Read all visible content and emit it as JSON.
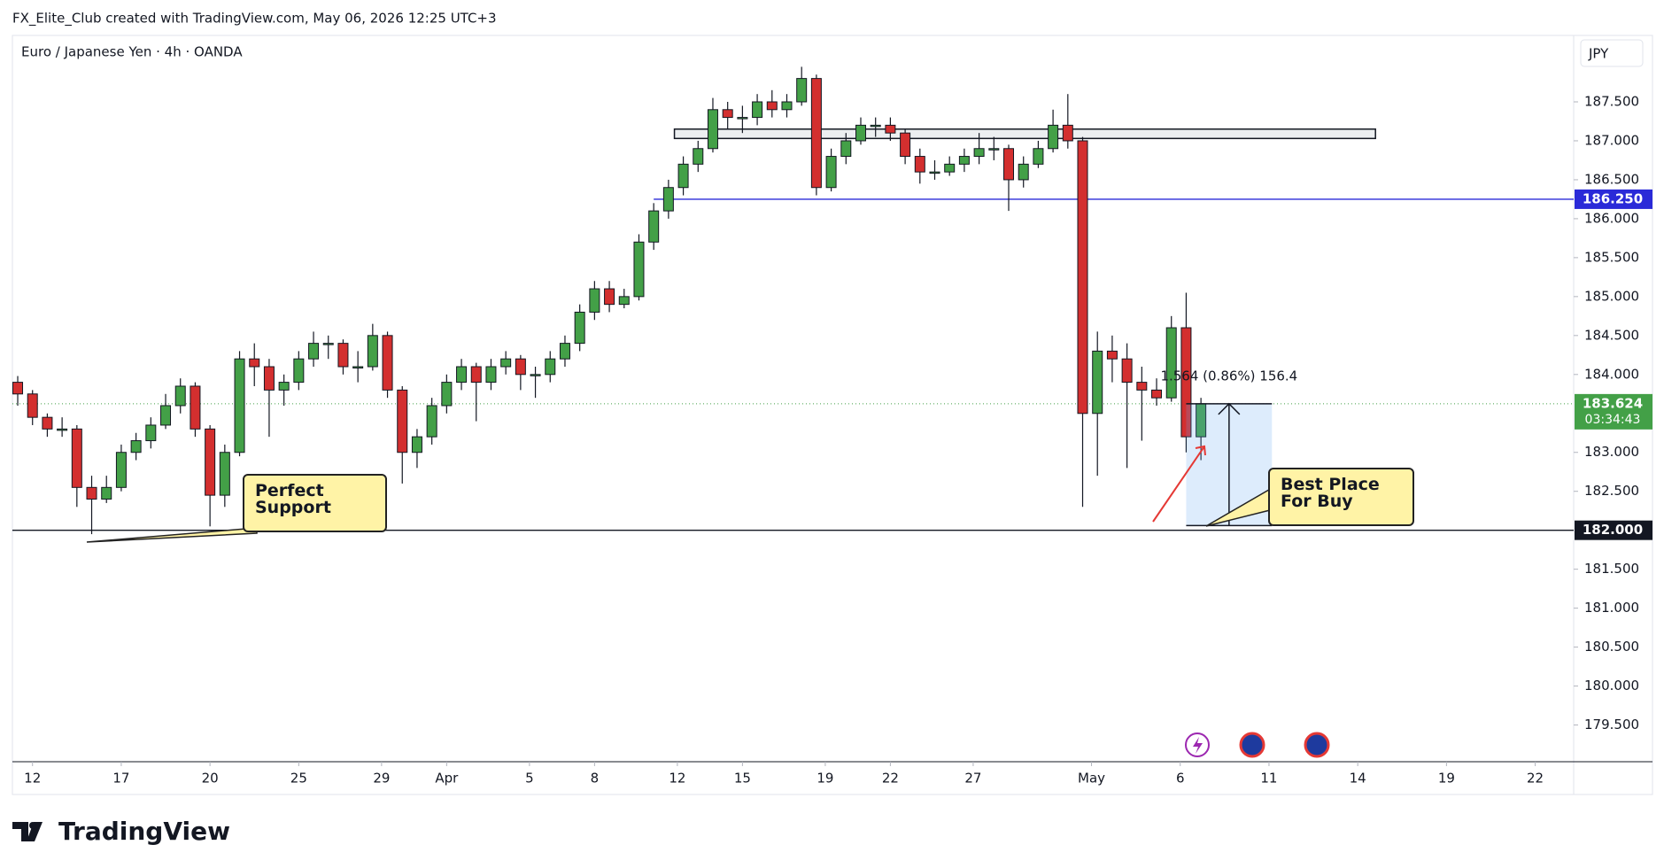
{
  "header": "FX_Elite_Club created with TradingView.com, May 06, 2026 12:25 UTC+3",
  "branding": "TradingView",
  "chart_data": {
    "type": "candlestick",
    "title": "Euro / Japanese Yen · 4h · OANDA",
    "currency": "JPY",
    "up_color": "#43a047",
    "down_color": "#d32f2f",
    "grid": false,
    "xlim": [
      -0.68,
      52.1
    ],
    "ylim": [
      179.04,
      188.33
    ],
    "xticks": [
      {
        "value": 0,
        "label": "12"
      },
      {
        "value": 3,
        "label": "17"
      },
      {
        "value": 6,
        "label": "20"
      },
      {
        "value": 9,
        "label": "25"
      },
      {
        "value": 11.8,
        "label": "29"
      },
      {
        "value": 14,
        "label": "Apr"
      },
      {
        "value": 16.8,
        "label": "5"
      },
      {
        "value": 19,
        "label": "8"
      },
      {
        "value": 21.8,
        "label": "12"
      },
      {
        "value": 24,
        "label": "15"
      },
      {
        "value": 26.8,
        "label": "19"
      },
      {
        "value": 29,
        "label": "22"
      },
      {
        "value": 31.8,
        "label": "27"
      },
      {
        "value": 35.8,
        "label": "May"
      },
      {
        "value": 38.8,
        "label": "6"
      },
      {
        "value": 41.8,
        "label": "11"
      },
      {
        "value": 44.8,
        "label": "14"
      },
      {
        "value": 47.8,
        "label": "19"
      },
      {
        "value": 50.8,
        "label": "22"
      }
    ],
    "yticks": [
      {
        "value": 187.5,
        "label": "187.500"
      },
      {
        "value": 187,
        "label": "187.000"
      },
      {
        "value": 186.5,
        "label": "186.500"
      },
      {
        "value": 186,
        "label": "186.000"
      },
      {
        "value": 185.5,
        "label": "185.500"
      },
      {
        "value": 185,
        "label": "185.000"
      },
      {
        "value": 184.5,
        "label": "184.500"
      },
      {
        "value": 184,
        "label": "184.000"
      },
      {
        "value": 183,
        "label": "183.000"
      },
      {
        "value": 182.5,
        "label": "182.500"
      },
      {
        "value": 181.5,
        "label": "181.500"
      },
      {
        "value": 181,
        "label": "181.000"
      },
      {
        "value": 180.5,
        "label": "180.500"
      },
      {
        "value": 180,
        "label": "180.000"
      },
      {
        "value": 179.5,
        "label": "179.500"
      }
    ],
    "x": [
      -0.5,
      0,
      0.5,
      1,
      1.5,
      2,
      2.5,
      3,
      3.5,
      4,
      4.5,
      5,
      5.5,
      6,
      6.5,
      7,
      7.5,
      8,
      8.5,
      9,
      9.5,
      10,
      10.5,
      11,
      11.5,
      12,
      12.5,
      13,
      13.5,
      14,
      14.5,
      15,
      15.5,
      16,
      16.5,
      17,
      17.5,
      18,
      18.5,
      19,
      19.5,
      20,
      20.5,
      21,
      21.5,
      22,
      22.5,
      23,
      23.5,
      24,
      24.5,
      25,
      25.5,
      26,
      26.5,
      27,
      27.5,
      28,
      28.5,
      29,
      29.5,
      30,
      30.5,
      31,
      31.5,
      32,
      32.5,
      33,
      33.5,
      34,
      34.5,
      35,
      35.5,
      36,
      36.5,
      37,
      37.5,
      38,
      38.5,
      39,
      39.5
    ],
    "ohlc": [
      [
        183.9,
        183.98,
        183.6,
        183.75
      ],
      [
        183.75,
        183.8,
        183.35,
        183.45
      ],
      [
        183.45,
        183.5,
        183.2,
        183.3
      ],
      [
        183.3,
        183.45,
        183.2,
        183.3
      ],
      [
        183.3,
        183.35,
        182.3,
        182.55
      ],
      [
        182.55,
        182.7,
        181.95,
        182.4
      ],
      [
        182.4,
        182.7,
        182.35,
        182.55
      ],
      [
        182.55,
        183.1,
        182.5,
        183.0
      ],
      [
        183.0,
        183.25,
        182.9,
        183.15
      ],
      [
        183.15,
        183.45,
        183.05,
        183.35
      ],
      [
        183.35,
        183.75,
        183.3,
        183.6
      ],
      [
        183.6,
        183.95,
        183.5,
        183.85
      ],
      [
        183.85,
        183.9,
        183.2,
        183.3
      ],
      [
        183.3,
        183.35,
        182.05,
        182.45
      ],
      [
        182.45,
        183.1,
        182.3,
        183.0
      ],
      [
        183.0,
        184.3,
        182.95,
        184.2
      ],
      [
        184.2,
        184.4,
        183.85,
        184.1
      ],
      [
        184.1,
        184.2,
        183.2,
        183.8
      ],
      [
        183.8,
        184.0,
        183.6,
        183.9
      ],
      [
        183.9,
        184.3,
        183.8,
        184.2
      ],
      [
        184.2,
        184.55,
        184.1,
        184.4
      ],
      [
        184.4,
        184.5,
        184.2,
        184.4
      ],
      [
        184.4,
        184.45,
        184.0,
        184.1
      ],
      [
        184.1,
        184.3,
        183.9,
        184.1
      ],
      [
        184.1,
        184.65,
        184.05,
        184.5
      ],
      [
        184.5,
        184.55,
        183.7,
        183.8
      ],
      [
        183.8,
        183.85,
        182.6,
        183.0
      ],
      [
        183.0,
        183.3,
        182.8,
        183.2
      ],
      [
        183.2,
        183.7,
        183.1,
        183.6
      ],
      [
        183.6,
        184.0,
        183.5,
        183.9
      ],
      [
        183.9,
        184.2,
        183.8,
        184.1
      ],
      [
        184.1,
        184.15,
        183.4,
        183.9
      ],
      [
        183.9,
        184.2,
        183.8,
        184.1
      ],
      [
        184.1,
        184.3,
        184.0,
        184.2
      ],
      [
        184.2,
        184.25,
        183.8,
        184.0
      ],
      [
        184.0,
        184.1,
        183.7,
        184.0
      ],
      [
        184.0,
        184.3,
        183.9,
        184.2
      ],
      [
        184.2,
        184.5,
        184.1,
        184.4
      ],
      [
        184.4,
        184.9,
        184.3,
        184.8
      ],
      [
        184.8,
        185.2,
        184.7,
        185.1
      ],
      [
        185.1,
        185.2,
        184.8,
        184.9
      ],
      [
        184.9,
        185.1,
        184.85,
        185.0
      ],
      [
        185.0,
        185.8,
        184.95,
        185.7
      ],
      [
        185.7,
        186.2,
        185.6,
        186.1
      ],
      [
        186.1,
        186.5,
        186.0,
        186.4
      ],
      [
        186.4,
        186.8,
        186.3,
        186.7
      ],
      [
        186.7,
        187.0,
        186.6,
        186.9
      ],
      [
        186.9,
        187.55,
        186.85,
        187.4
      ],
      [
        187.4,
        187.5,
        187.15,
        187.3
      ],
      [
        187.3,
        187.45,
        187.1,
        187.3
      ],
      [
        187.3,
        187.6,
        187.2,
        187.5
      ],
      [
        187.5,
        187.65,
        187.3,
        187.4
      ],
      [
        187.4,
        187.6,
        187.3,
        187.5
      ],
      [
        187.5,
        187.95,
        187.45,
        187.8
      ],
      [
        187.8,
        187.85,
        186.3,
        186.4
      ],
      [
        186.4,
        186.9,
        186.35,
        186.8
      ],
      [
        186.8,
        187.1,
        186.7,
        187.0
      ],
      [
        187.0,
        187.3,
        186.95,
        187.2
      ],
      [
        187.2,
        187.3,
        187.05,
        187.2
      ],
      [
        187.2,
        187.3,
        187.0,
        187.1
      ],
      [
        187.1,
        187.15,
        186.7,
        186.8
      ],
      [
        186.8,
        186.9,
        186.45,
        186.6
      ],
      [
        186.6,
        186.75,
        186.5,
        186.6
      ],
      [
        186.6,
        186.8,
        186.55,
        186.7
      ],
      [
        186.7,
        186.9,
        186.6,
        186.8
      ],
      [
        186.8,
        187.1,
        186.7,
        186.9
      ],
      [
        186.9,
        187.05,
        186.75,
        186.9
      ],
      [
        186.9,
        186.95,
        186.1,
        186.5
      ],
      [
        186.5,
        186.8,
        186.4,
        186.7
      ],
      [
        186.7,
        187.0,
        186.65,
        186.9
      ],
      [
        186.9,
        187.4,
        186.85,
        187.2
      ],
      [
        187.2,
        187.6,
        186.9,
        187.0
      ],
      [
        187.0,
        187.05,
        182.3,
        183.5
      ],
      [
        183.5,
        184.55,
        182.7,
        184.3
      ],
      [
        184.3,
        184.5,
        183.9,
        184.2
      ],
      [
        184.2,
        184.4,
        182.8,
        183.9
      ],
      [
        183.9,
        184.1,
        183.15,
        183.8
      ],
      [
        183.8,
        183.95,
        183.6,
        183.7
      ],
      [
        183.7,
        184.75,
        183.65,
        184.6
      ],
      [
        184.6,
        185.05,
        183.0,
        183.2
      ],
      [
        183.2,
        183.7,
        182.9,
        183.624
      ]
    ],
    "levels": [
      {
        "value": 186.25,
        "label": "186.250",
        "color": "#2a2ad8",
        "x_start": 21.0
      },
      {
        "value": 182,
        "label": "182.000",
        "color": "#131722",
        "x_start": -0.68
      },
      {
        "value": 183.624,
        "label": "183.624",
        "color": "#43a047",
        "x_start": -0.68,
        "countdown": "03:34:43"
      }
    ],
    "zone": {
      "top": 187.15,
      "bottom": 187.03,
      "x": [
        21.7,
        45.4
      ]
    },
    "measure": {
      "label": "1.564 (0.86%) 156.4",
      "from": 182.06,
      "to": 183.624,
      "x": [
        39,
        41.9
      ]
    },
    "callouts": [
      "Perfect Support",
      "Best Place For Buy"
    ]
  }
}
